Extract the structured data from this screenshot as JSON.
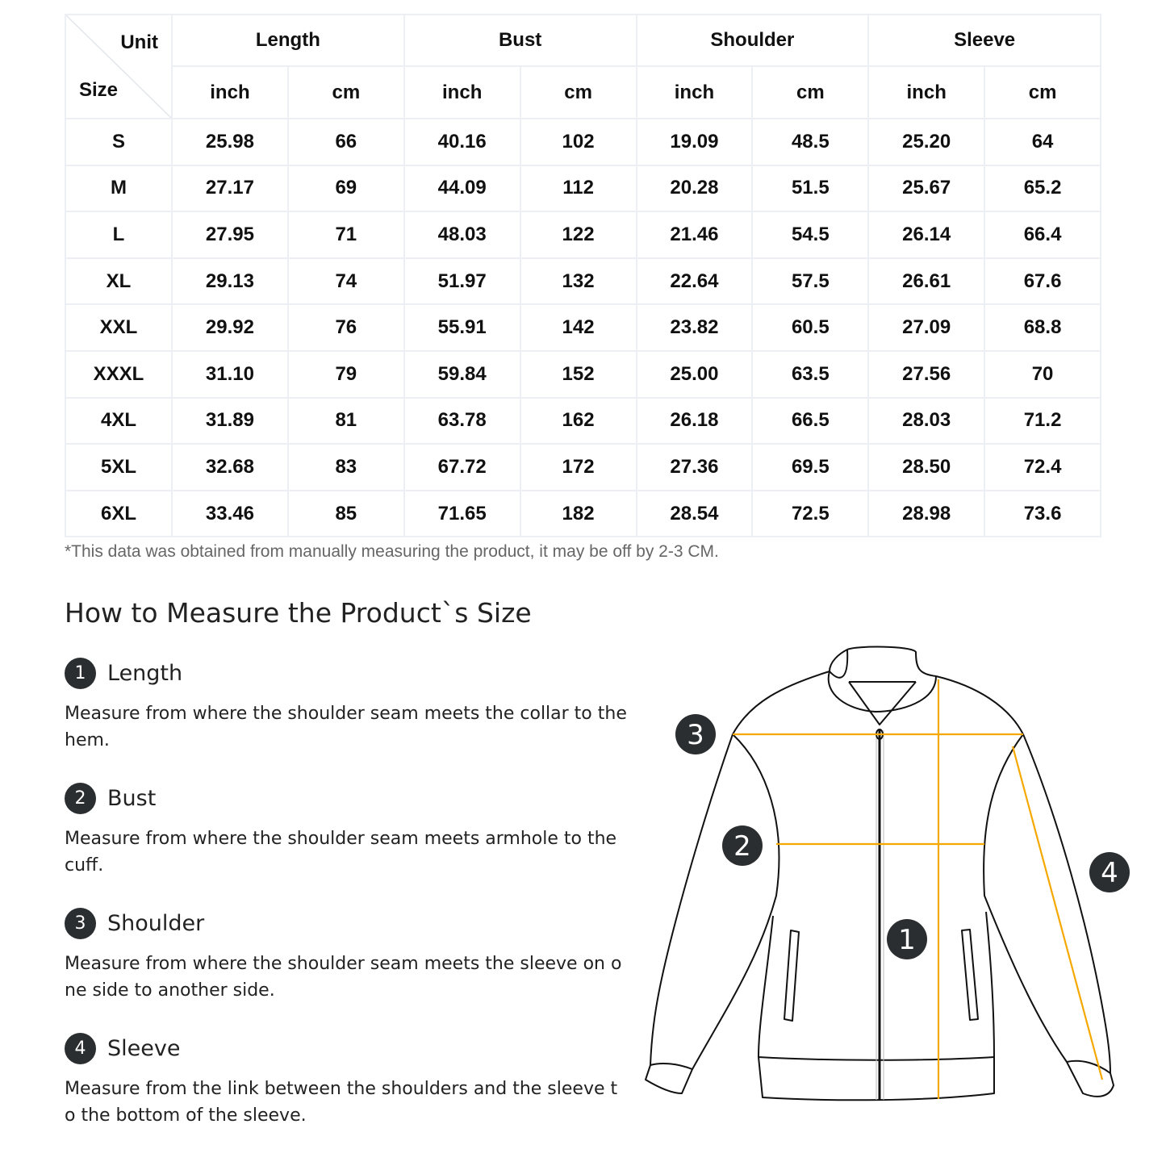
{
  "table": {
    "corner_unit": "Unit",
    "corner_size": "Size",
    "groups": [
      "Length",
      "Bust",
      "Shoulder",
      "Sleeve"
    ],
    "units": [
      "inch",
      "cm",
      "inch",
      "cm",
      "inch",
      "cm",
      "inch",
      "cm"
    ],
    "rows": [
      [
        "S",
        "25.98",
        "66",
        "40.16",
        "102",
        "19.09",
        "48.5",
        "25.20",
        "64"
      ],
      [
        "M",
        "27.17",
        "69",
        "44.09",
        "112",
        "20.28",
        "51.5",
        "25.67",
        "65.2"
      ],
      [
        "L",
        "27.95",
        "71",
        "48.03",
        "122",
        "21.46",
        "54.5",
        "26.14",
        "66.4"
      ],
      [
        "XL",
        "29.13",
        "74",
        "51.97",
        "132",
        "22.64",
        "57.5",
        "26.61",
        "67.6"
      ],
      [
        "XXL",
        "29.92",
        "76",
        "55.91",
        "142",
        "23.82",
        "60.5",
        "27.09",
        "68.8"
      ],
      [
        "XXXL",
        "31.10",
        "79",
        "59.84",
        "152",
        "25.00",
        "63.5",
        "27.56",
        "70"
      ],
      [
        "4XL",
        "31.89",
        "81",
        "63.78",
        "162",
        "26.18",
        "66.5",
        "28.03",
        "71.2"
      ],
      [
        "5XL",
        "32.68",
        "83",
        "67.72",
        "172",
        "27.36",
        "69.5",
        "28.50",
        "72.4"
      ],
      [
        "6XL",
        "33.46",
        "85",
        "71.65",
        "182",
        "28.54",
        "72.5",
        "28.98",
        "73.6"
      ]
    ]
  },
  "note": "*This data was obtained from manually measuring the product, it may be off by 2-3 CM.",
  "how_to": {
    "title": "How to Measure the Product`s Size",
    "items": [
      {
        "num": "1",
        "label": "Length",
        "desc": "Measure from where the shoulder seam meets the collar to the hem."
      },
      {
        "num": "2",
        "label": "Bust",
        "desc": "Measure from where the shoulder seam meets armhole to the cuff."
      },
      {
        "num": "3",
        "label": "Shoulder",
        "desc": "Measure from where the shoulder seam meets the sleeve on o ne side to another side."
      },
      {
        "num": "4",
        "label": "Sleeve",
        "desc": "Measure from the link between the shoulders and the sleeve t o the bottom of the sleeve."
      }
    ]
  },
  "diagram": {
    "markers": [
      "1",
      "2",
      "3",
      "4"
    ],
    "line_color": "#f5a800",
    "marker_color": "#2a2e30"
  }
}
